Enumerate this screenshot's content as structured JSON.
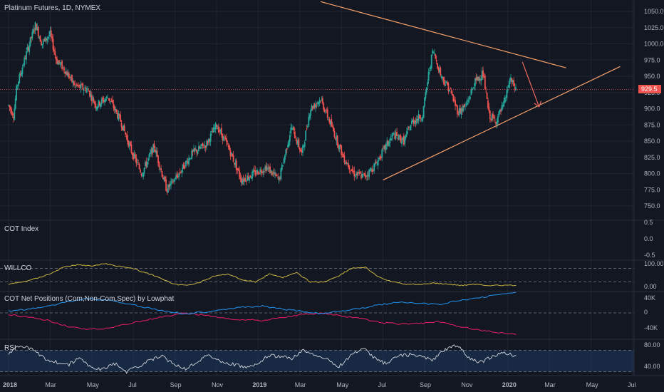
{
  "chart_title": "Platinum Futures, 1D, NYMEX",
  "last_price_label": "929.5",
  "colors": {
    "background": "#131722",
    "up": "#26a69a",
    "down": "#ef5350",
    "trendline": "#f7a26b",
    "price_line": "#ef5350",
    "willco": "#c9b542",
    "cot_comm": "#e91e63",
    "cot_noncomm": "#2196f3",
    "rsi": "#d1d4dc",
    "rsi_band": "#1e3a5f"
  },
  "time_axis": [
    "2018",
    "Mar",
    "May",
    "Jul",
    "Sep",
    "Nov",
    "2019",
    "Mar",
    "May",
    "Jul",
    "Sep",
    "Nov",
    "2020",
    "Mar",
    "May",
    "Jul"
  ],
  "price_axis": [
    "1050.0",
    "1025.0",
    "1000.0",
    "975.0",
    "950.0",
    "925.0",
    "900.0",
    "875.0",
    "850.0",
    "825.0",
    "800.0",
    "775.0",
    "750.0"
  ],
  "panes": {
    "cot_index": {
      "title": "COT Index",
      "ticks": [
        "0.5",
        "0.0",
        "-0.5"
      ]
    },
    "willco": {
      "title": "WILLCO",
      "ticks": [
        "100.00",
        "0.00"
      ]
    },
    "cot_net": {
      "title": "COT Net Positions (Com,Non-Com,Spec) by Lowphat",
      "ticks": [
        "40K",
        "0",
        "-40K"
      ]
    },
    "rsi": {
      "title": "RSI",
      "ticks": [
        "80.00",
        "40.00"
      ]
    }
  },
  "chart_data": {
    "type": "candlestick",
    "title": "Platinum Futures, 1D, NYMEX",
    "last_price": 929.5,
    "y_range": [
      735,
      1060
    ],
    "x_range_months": [
      0,
      31
    ],
    "close_path": [
      [
        0,
        905
      ],
      [
        0.25,
        890
      ],
      [
        0.4,
        935
      ],
      [
        0.9,
        990
      ],
      [
        1.3,
        1030
      ],
      [
        1.6,
        1000
      ],
      [
        2.0,
        1015
      ],
      [
        2.3,
        975
      ],
      [
        2.7,
        960
      ],
      [
        3.2,
        935
      ],
      [
        3.8,
        930
      ],
      [
        4.2,
        905
      ],
      [
        4.8,
        918
      ],
      [
        5.4,
        880
      ],
      [
        5.9,
        835
      ],
      [
        6.4,
        800
      ],
      [
        7.0,
        842
      ],
      [
        7.6,
        775
      ],
      [
        8.2,
        800
      ],
      [
        8.8,
        830
      ],
      [
        9.5,
        845
      ],
      [
        10.0,
        875
      ],
      [
        10.6,
        838
      ],
      [
        11.2,
        790
      ],
      [
        11.8,
        800
      ],
      [
        12.4,
        810
      ],
      [
        13.0,
        790
      ],
      [
        13.6,
        872
      ],
      [
        14.1,
        830
      ],
      [
        14.5,
        900
      ],
      [
        15.0,
        915
      ],
      [
        15.5,
        875
      ],
      [
        16.1,
        825
      ],
      [
        16.6,
        800
      ],
      [
        17.1,
        795
      ],
      [
        17.6,
        812
      ],
      [
        18.1,
        840
      ],
      [
        18.5,
        860
      ],
      [
        19.0,
        850
      ],
      [
        19.4,
        880
      ],
      [
        19.9,
        890
      ],
      [
        20.2,
        955
      ],
      [
        20.4,
        990
      ],
      [
        20.8,
        950
      ],
      [
        21.2,
        930
      ],
      [
        21.6,
        895
      ],
      [
        22.0,
        905
      ],
      [
        22.4,
        940
      ],
      [
        22.8,
        955
      ],
      [
        23.1,
        890
      ],
      [
        23.4,
        880
      ],
      [
        23.8,
        905
      ],
      [
        24.1,
        945
      ],
      [
        24.4,
        929.5
      ]
    ],
    "trendlines": [
      {
        "name": "upper resistance",
        "from": [
          15,
          1065
        ],
        "to": [
          26.8,
          963
        ]
      },
      {
        "name": "lower support",
        "from": [
          18,
          790
        ],
        "to": [
          29.4,
          965
        ]
      }
    ],
    "arrow": {
      "from": [
        24.7,
        972
      ],
      "to": [
        25.5,
        903
      ]
    },
    "indicators": {
      "cot_index": {
        "ticks": [
          0.5,
          0.0,
          -0.5
        ]
      },
      "willco": {
        "range": [
          0,
          100
        ],
        "levels": [
          80,
          20
        ],
        "values": [
          10,
          20,
          35,
          55,
          85,
          95,
          90,
          100,
          90,
          80,
          60,
          40,
          10,
          5,
          20,
          45,
          55,
          30,
          20,
          55,
          40,
          60,
          20,
          20,
          45,
          80,
          85,
          40,
          20,
          10,
          10,
          15,
          10,
          5,
          10,
          5,
          5,
          5
        ]
      },
      "cot_net": {
        "series": [
          {
            "name": "Com",
            "values": [
              -5000,
              -12000,
              -20000,
              -35000,
              -45000,
              -42000,
              -30000,
              -20000,
              -10000,
              -2000,
              -5000,
              -15000,
              -18000,
              -20000,
              -12000,
              -5000,
              0,
              -8000,
              -15000,
              -25000,
              -30000,
              -28000,
              -24000,
              -35000,
              -45000,
              -52000,
              -58000
            ]
          },
          {
            "name": "Non-Com",
            "values": [
              5000,
              10000,
              18000,
              30000,
              38000,
              35000,
              25000,
              15000,
              5000,
              -2000,
              2000,
              10000,
              15000,
              18000,
              10000,
              4000,
              -2000,
              5000,
              12000,
              22000,
              28000,
              26000,
              22000,
              32000,
              40000,
              48000,
              55000
            ]
          }
        ]
      },
      "rsi": {
        "levels": [
          70,
          30
        ],
        "values": [
          65,
          78,
          72,
          55,
          48,
          42,
          55,
          38,
          35,
          45,
          30,
          40,
          52,
          58,
          45,
          35,
          50,
          62,
          48,
          44,
          38,
          42,
          60,
          58,
          55,
          70,
          62,
          52,
          40,
          60,
          75,
          55,
          45,
          60,
          62,
          58,
          52,
          72,
          80,
          55,
          48,
          58,
          65,
          60
        ]
      }
    }
  }
}
